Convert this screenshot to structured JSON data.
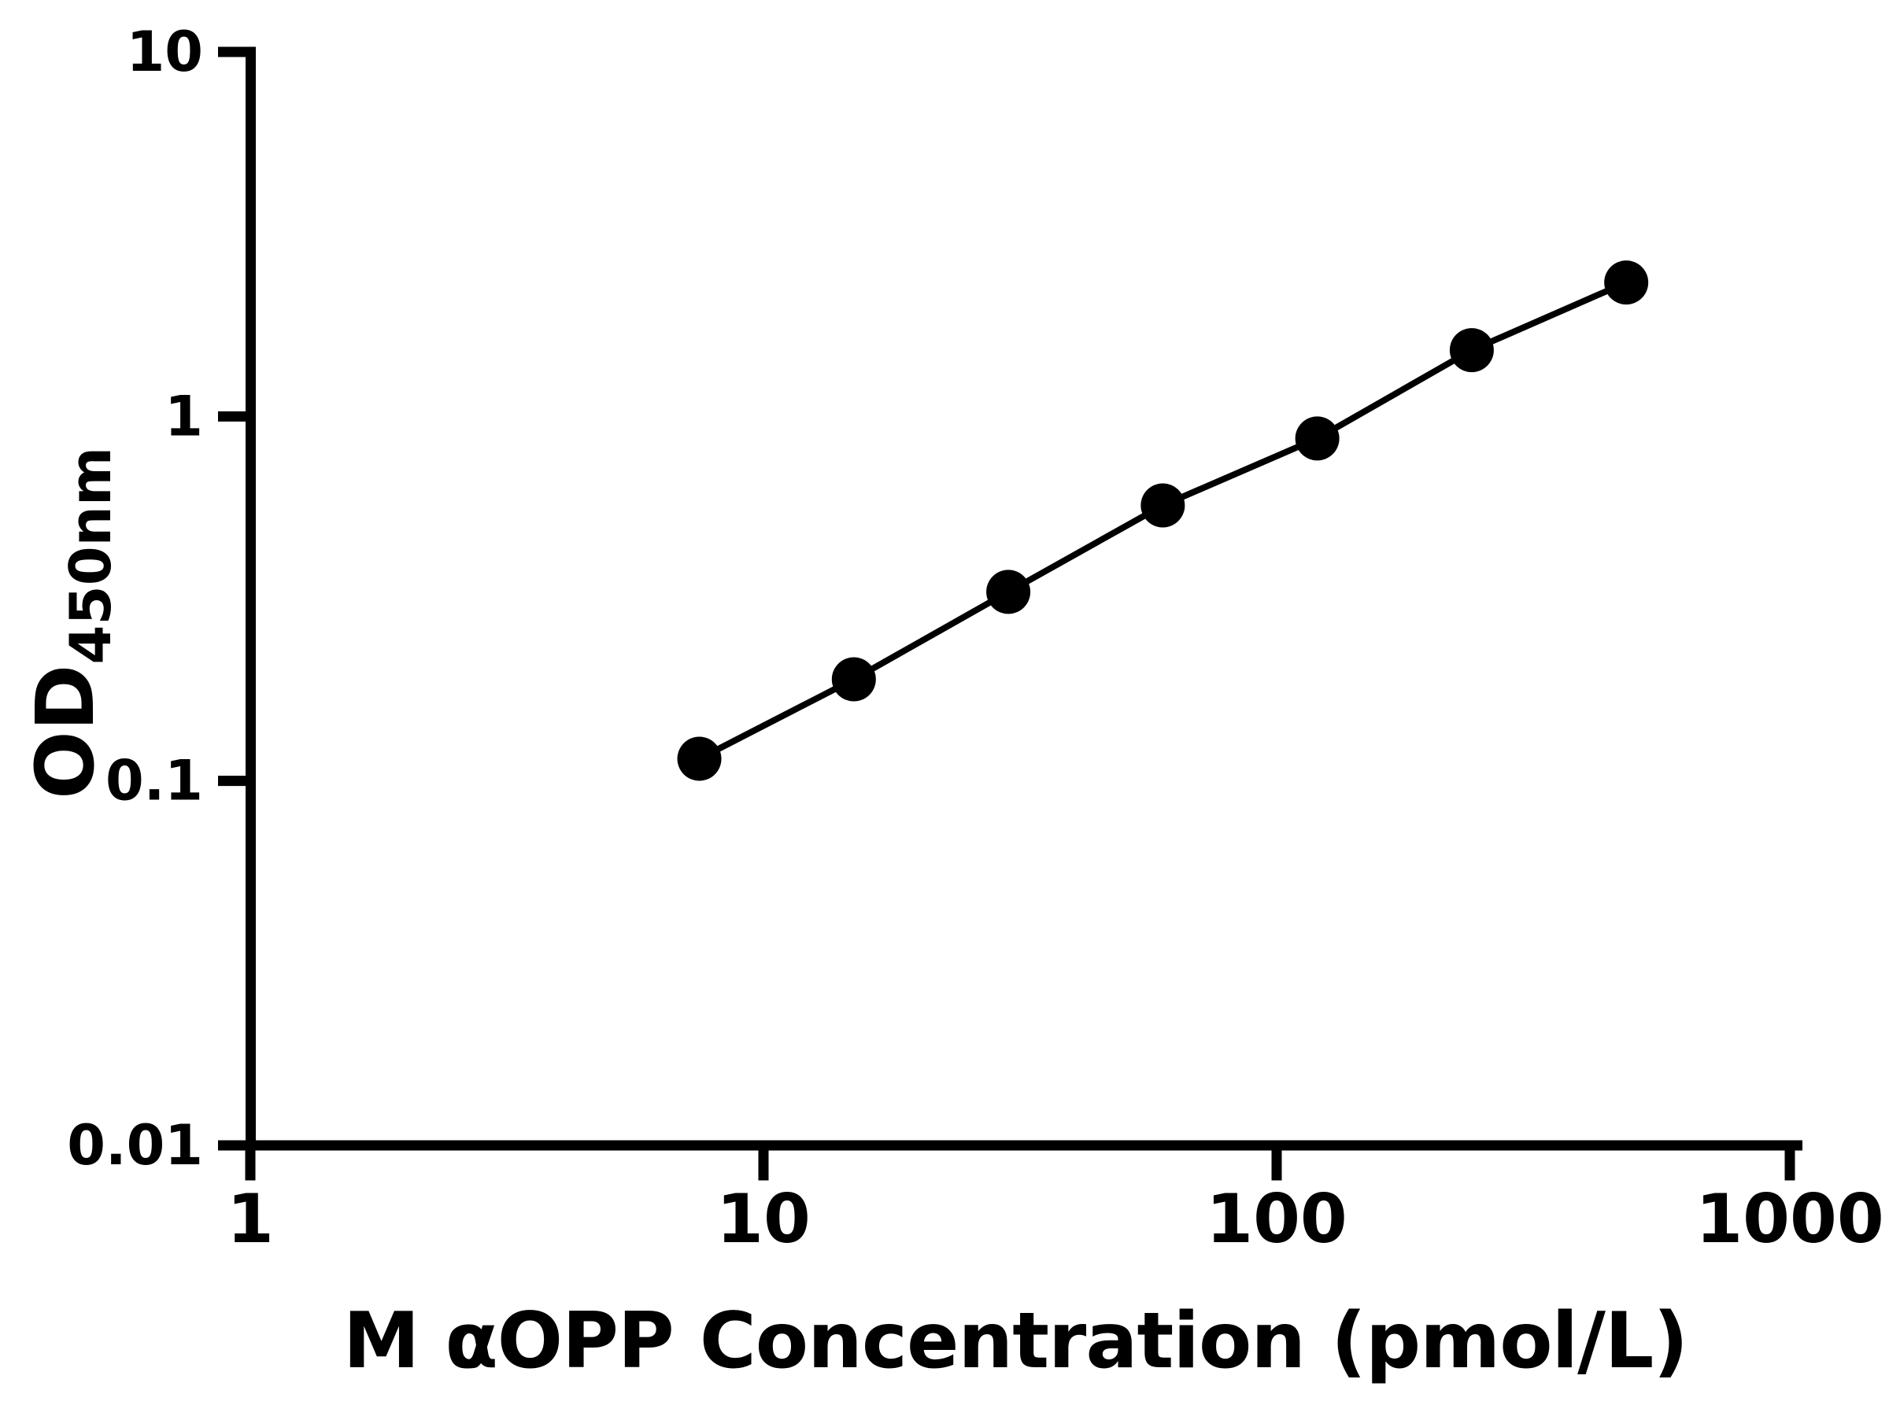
{
  "figure": {
    "background": "#ffffff",
    "ink_color": "#000000"
  },
  "chart_data": {
    "type": "line",
    "title": "",
    "xlabel": "M αOPP Concentration (pmol/L)",
    "ylabel_main": "OD",
    "ylabel_sub": "450nm",
    "x_scale": "log",
    "y_scale": "log",
    "xlim": [
      1,
      1000
    ],
    "ylim": [
      0.01,
      10
    ],
    "x_ticks": [
      1,
      10,
      100,
      1000
    ],
    "x_tick_labels": [
      "1",
      "10",
      "100",
      "1000"
    ],
    "y_ticks": [
      10,
      1,
      0.1,
      0.01
    ],
    "y_tick_labels": [
      "10",
      "1",
      "0.1",
      "0.01"
    ],
    "grid": false,
    "legend": "none",
    "series": [
      {
        "name": "standard-curve",
        "marker": "filled-circle",
        "line_style": "solid",
        "color": "#000000",
        "x": [
          7.5,
          15,
          30,
          60,
          120,
          240,
          480
        ],
        "y": [
          0.115,
          0.19,
          0.33,
          0.57,
          0.87,
          1.52,
          2.33
        ]
      }
    ]
  }
}
